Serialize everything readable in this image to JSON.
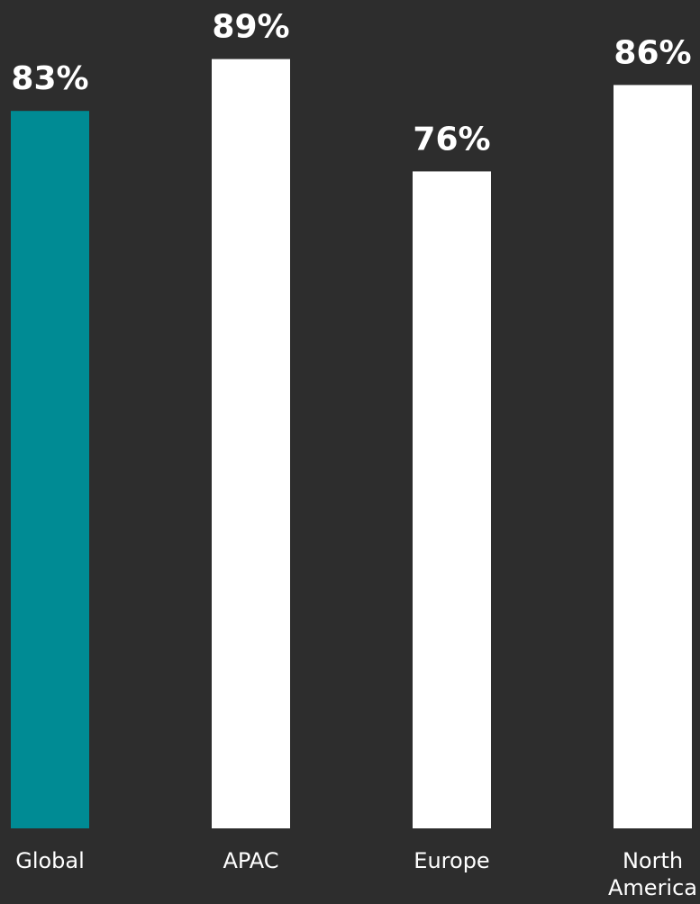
{
  "chart_data": {
    "type": "bar",
    "categories": [
      "Global",
      "APAC",
      "Europe",
      "North America"
    ],
    "values": [
      83,
      89,
      76,
      86
    ],
    "value_labels": [
      "83%",
      "89%",
      "76%",
      "86%"
    ],
    "category_labels": [
      [
        "Global"
      ],
      [
        "APAC"
      ],
      [
        "Europe"
      ],
      [
        "North",
        "America"
      ]
    ],
    "ylim": [
      0,
      100
    ],
    "unit": "%",
    "highlight_index": 0,
    "colors": {
      "background": "#2d2d2d",
      "highlight": "#008b94",
      "bar": "#ffffff",
      "text": "#ffffff"
    },
    "grid": false,
    "legend": "none"
  }
}
